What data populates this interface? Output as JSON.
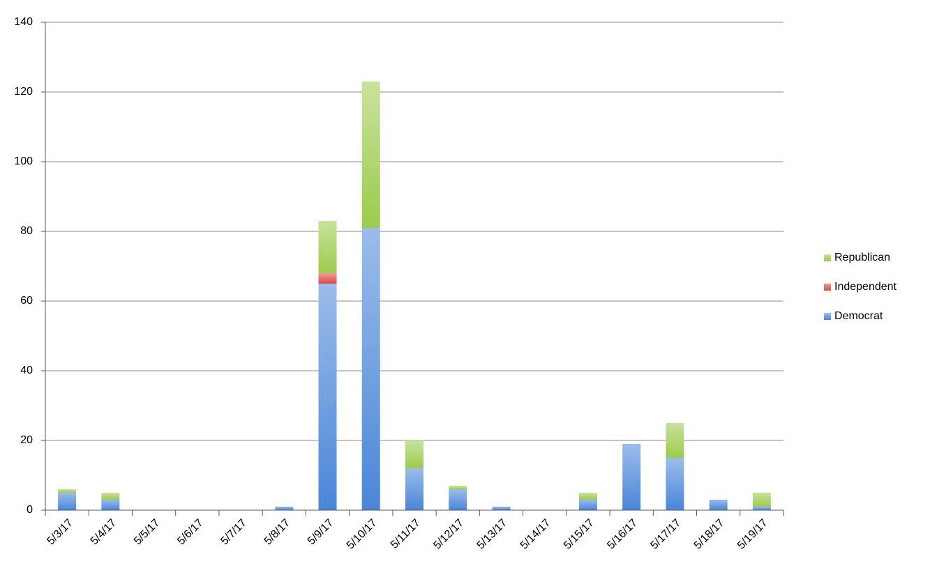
{
  "chart_data": {
    "type": "stacked_bar",
    "categories": [
      "5/3/17",
      "5/4/17",
      "5/5/17",
      "5/6/17",
      "5/7/17",
      "5/8/17",
      "5/9/17",
      "5/10/17",
      "5/11/17",
      "5/12/17",
      "5/13/17",
      "5/14/17",
      "5/15/17",
      "5/16/17",
      "5/17/17",
      "5/18/17",
      "5/19/17"
    ],
    "series": [
      {
        "name": "Democrat",
        "color": "#4a86d8",
        "values": [
          5,
          3,
          0,
          0,
          0,
          1,
          65,
          81,
          12,
          6,
          1,
          0,
          3,
          19,
          15,
          3,
          1
        ]
      },
      {
        "name": "Independent",
        "color": "#e04848",
        "values": [
          0,
          0,
          0,
          0,
          0,
          0,
          3,
          0,
          0,
          0,
          0,
          0,
          0,
          0,
          0,
          0,
          0
        ]
      },
      {
        "name": "Republican",
        "color": "#9ccb4c",
        "values": [
          1,
          2,
          0,
          0,
          0,
          0,
          15,
          42,
          8,
          1,
          0,
          0,
          2,
          0,
          10,
          0,
          4
        ]
      }
    ],
    "ylim": [
      0,
      140
    ],
    "yticks": [
      0,
      20,
      40,
      60,
      80,
      100,
      120,
      140
    ],
    "grid": true,
    "legend": "right"
  }
}
